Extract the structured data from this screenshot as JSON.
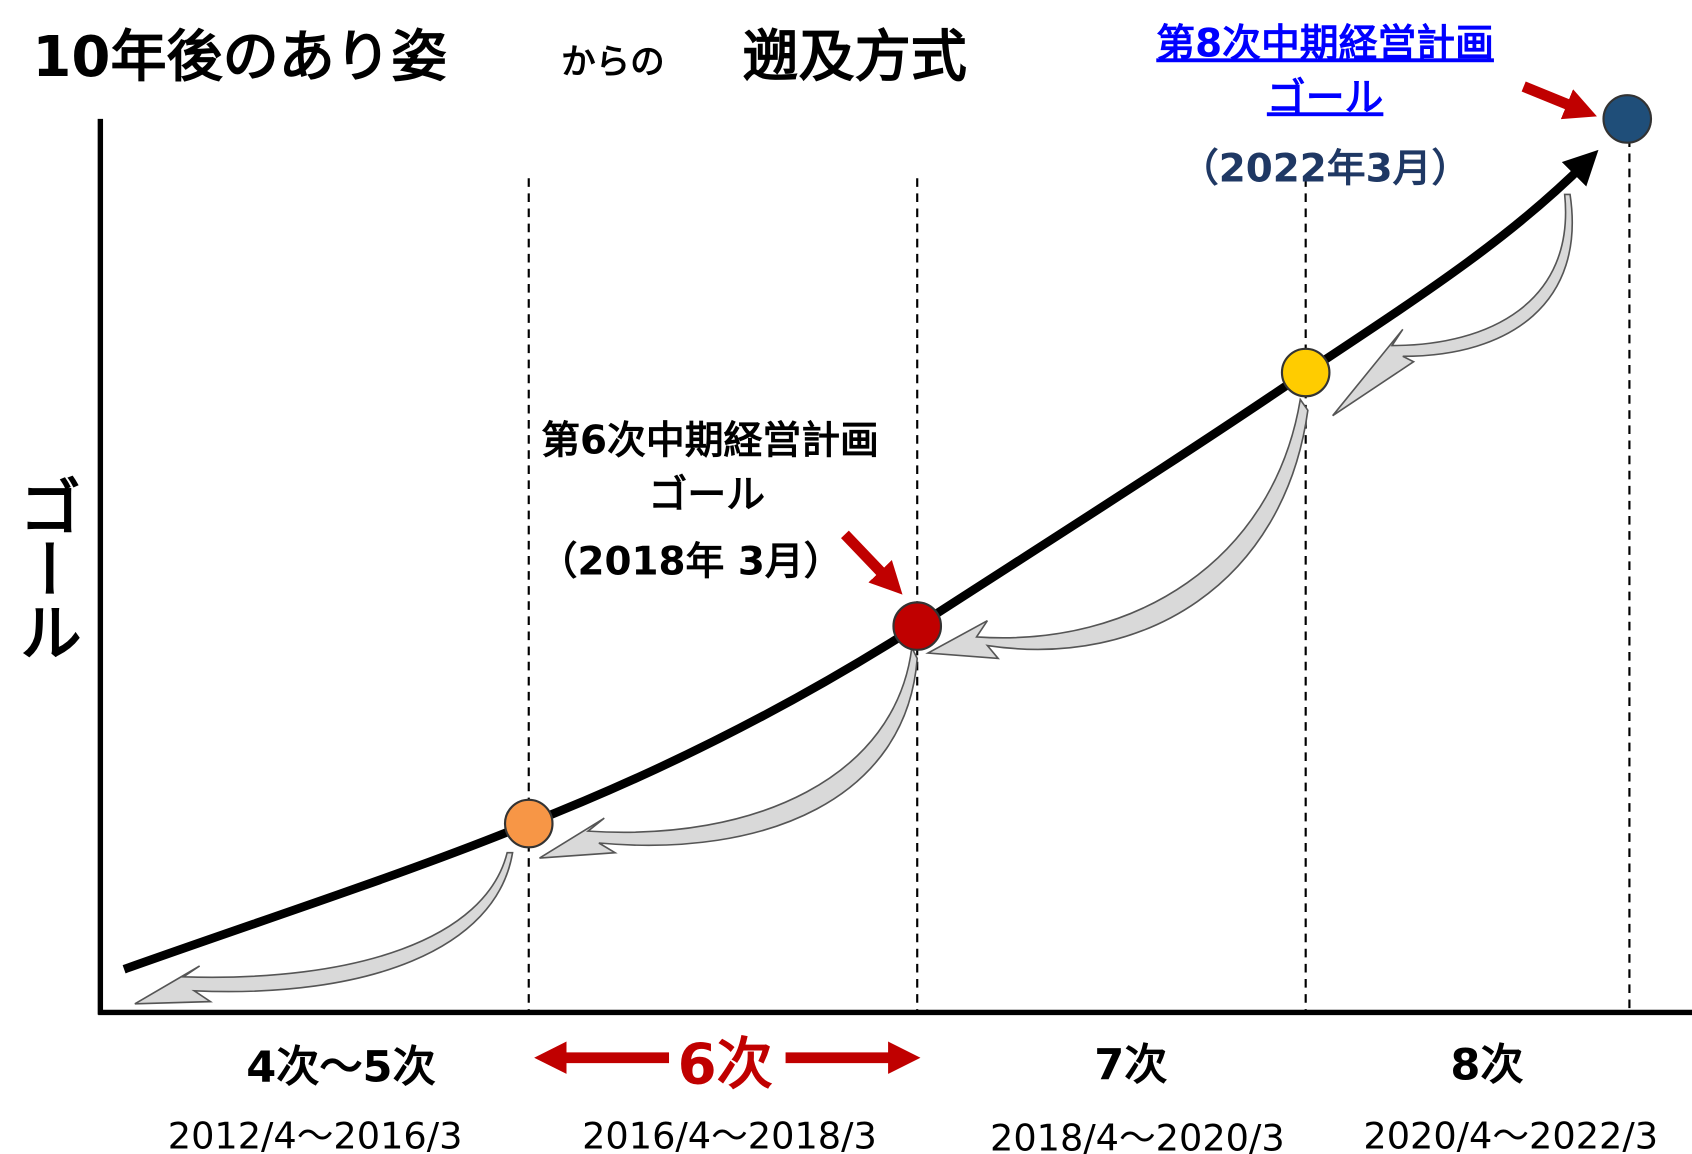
{
  "title": {
    "main": "10年後のあり姿",
    "small": "からの",
    "method": "遡及方式"
  },
  "y_axis_label": "ゴール",
  "goals": [
    {
      "lines": [
        "第6次中期経営計画",
        "ゴール",
        "（2018年 3月）"
      ]
    },
    {
      "lines": [
        "第8次中期経営計画",
        "ゴール",
        "（2022年3月）"
      ]
    }
  ],
  "periods": [
    {
      "name": "4次～5次",
      "range": "2012/4～2016/3"
    },
    {
      "name": "6次",
      "range": "2016/4～2018/3"
    },
    {
      "name": "7次",
      "range": "2018/4～2020/3"
    },
    {
      "name": "8次",
      "range": "2020/4～2022/3"
    }
  ]
}
